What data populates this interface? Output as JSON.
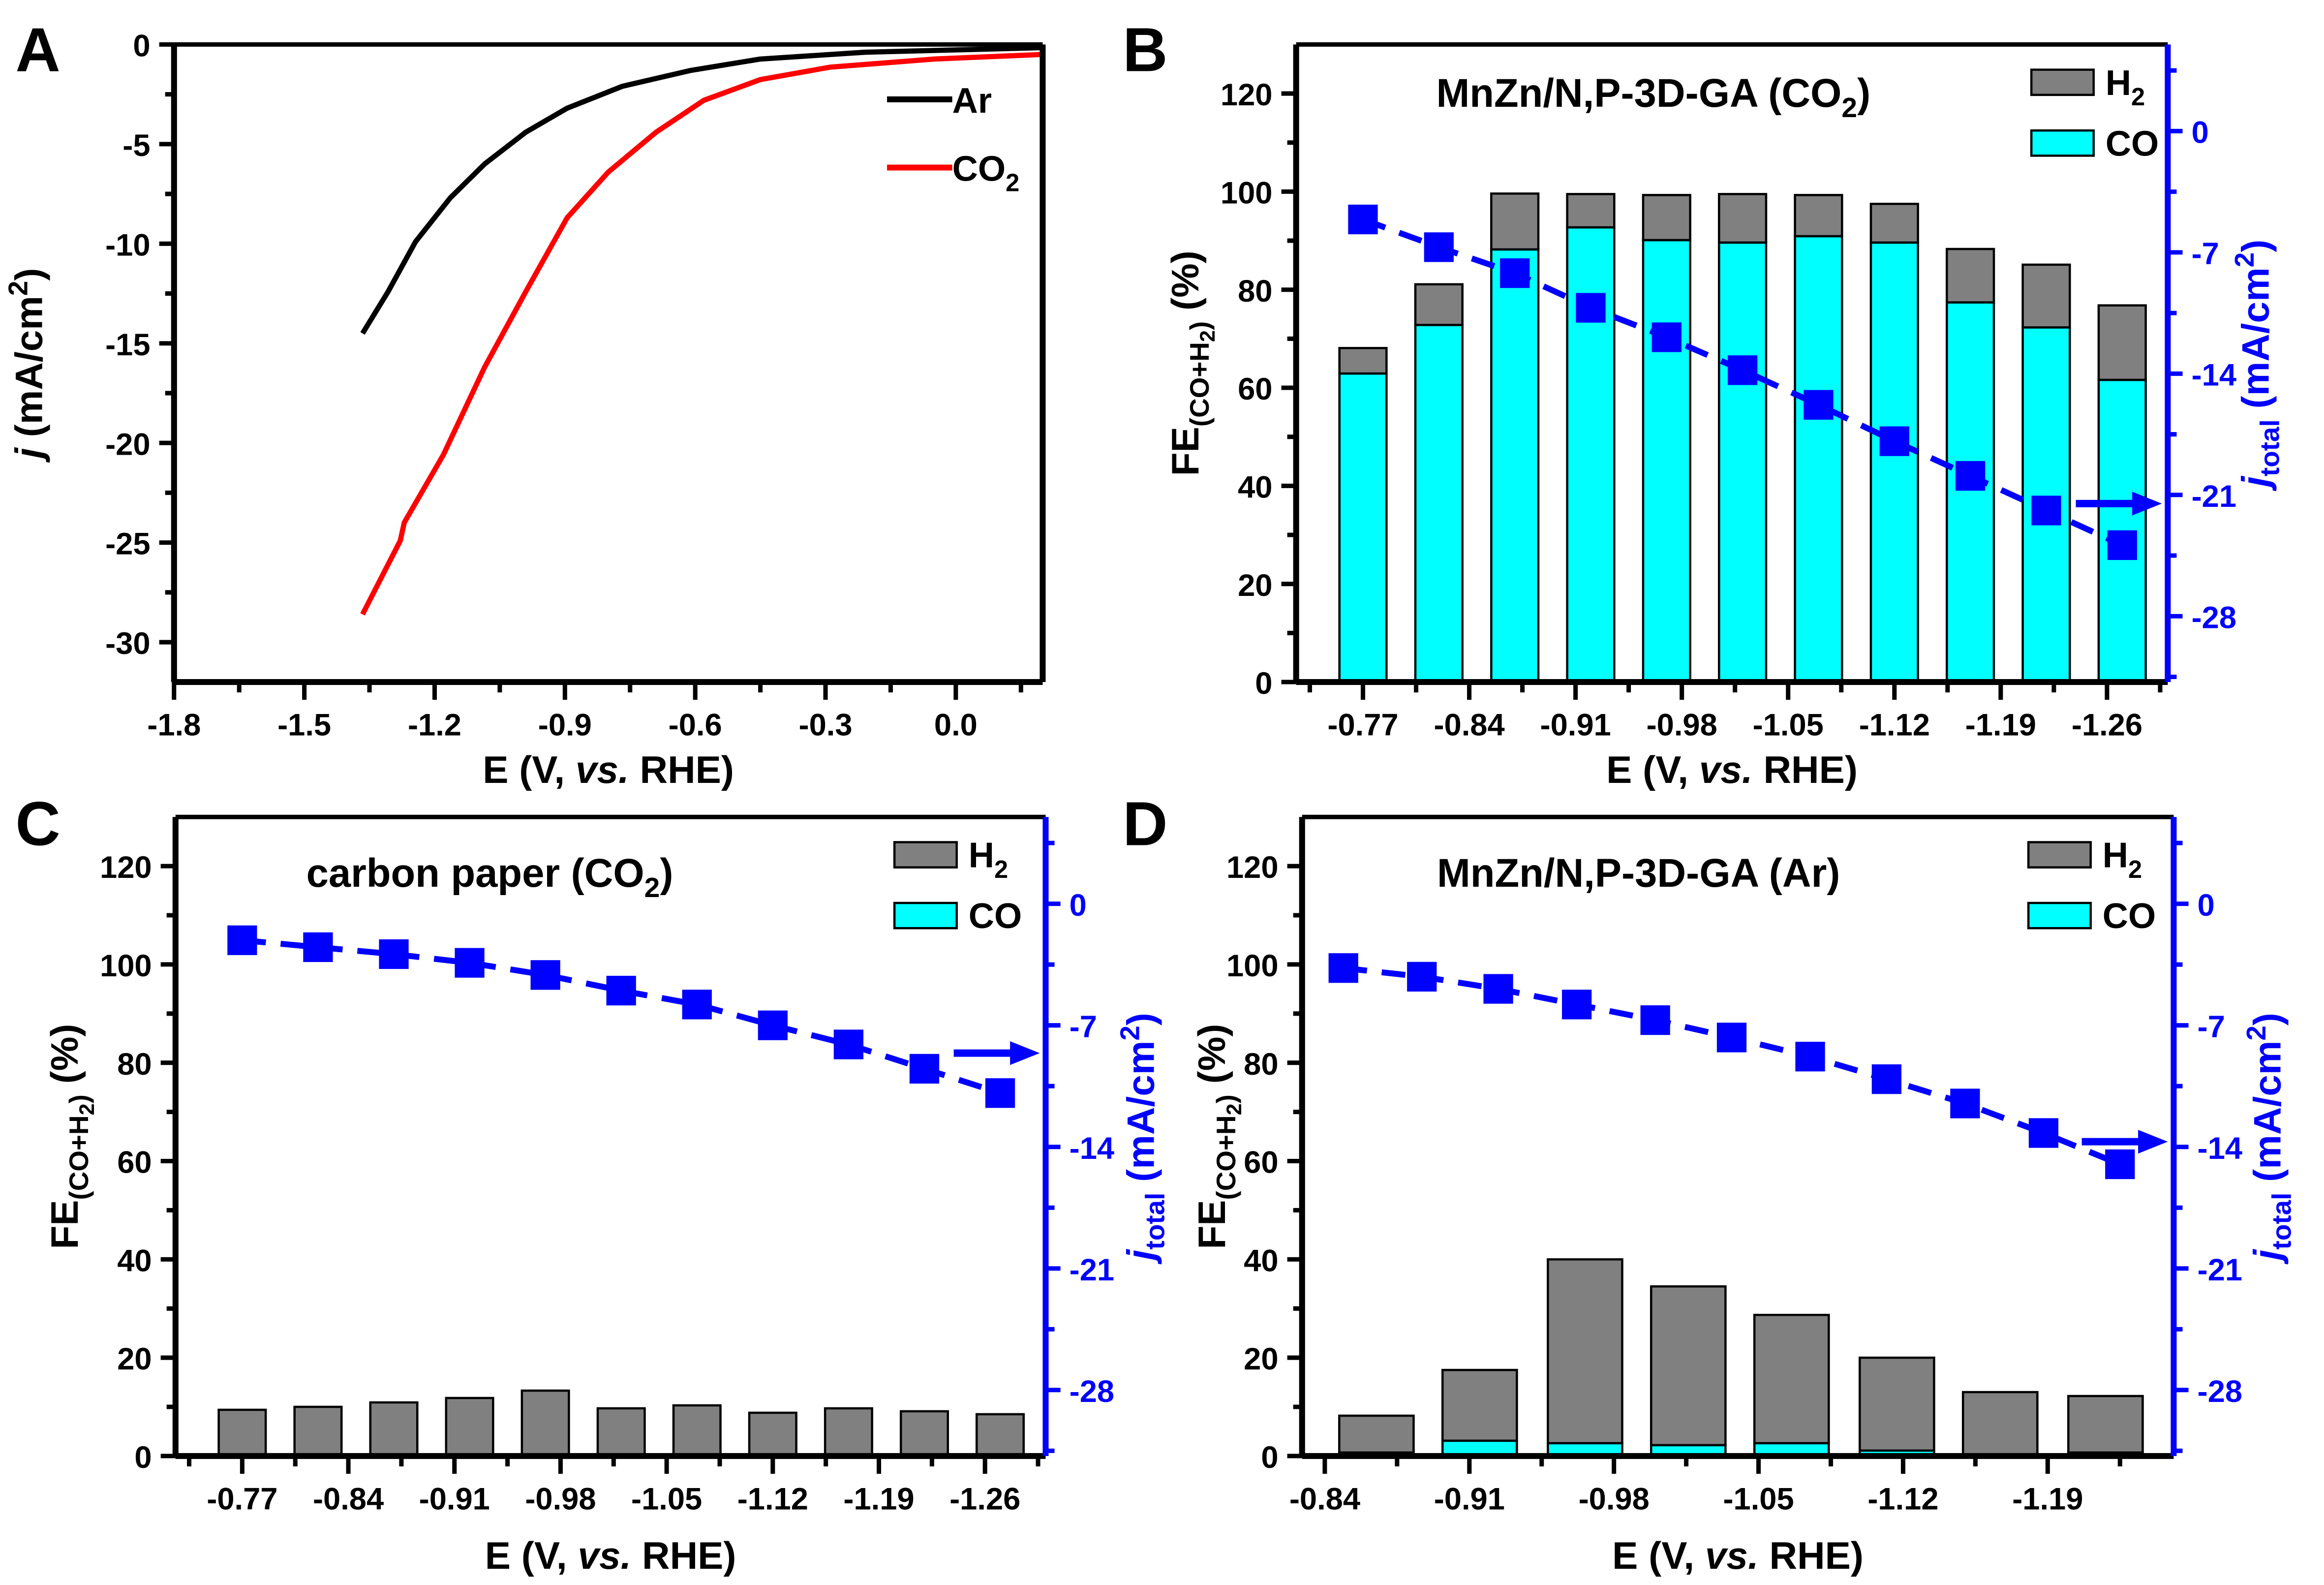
{
  "colors": {
    "h2": "#808080",
    "co": "#00FFFF",
    "jtotal": "#0000FF",
    "ar": "#000000",
    "co2": "#FF0000",
    "axis": "#000000"
  },
  "chart_data": [
    {
      "panel": "A",
      "type": "line",
      "xlabel": [
        {
          "t": "E (V, "
        },
        {
          "t": "vs.",
          "i": true
        },
        {
          "t": " RHE)"
        }
      ],
      "ylabel": [
        {
          "t": "j",
          "i": true
        },
        {
          "t": " (mA/cm"
        },
        {
          "t": "2",
          "s": "sup"
        },
        {
          "t": ")"
        }
      ],
      "xlim": [
        -1.8,
        0.2
      ],
      "ylim": [
        -32,
        0
      ],
      "xticks": [
        "-1.8",
        "-1.5",
        "-1.2",
        "-0.9",
        "-0.6",
        "-0.3",
        "0.0"
      ],
      "yticks": [
        "0",
        "-5",
        "-10",
        "-15",
        "-20",
        "-25",
        "-30"
      ],
      "legend_position": "top-right",
      "series": [
        {
          "name": [
            {
              "t": "Ar"
            }
          ],
          "color": "#000000",
          "x": [
            -1.366,
            -1.307,
            -1.244,
            -1.164,
            -1.085,
            -0.99,
            -0.895,
            -0.768,
            -0.61,
            -0.45,
            -0.21,
            0.2
          ],
          "y": [
            -14.5,
            -12.4,
            -9.9,
            -7.7,
            -6.0,
            -4.4,
            -3.2,
            -2.1,
            -1.3,
            -0.73,
            -0.39,
            -0.16
          ]
        },
        {
          "name": [
            {
              "t": "CO"
            },
            {
              "t": "2",
              "s": "sub"
            }
          ],
          "color": "#FF0000",
          "x": [
            -1.366,
            -1.279,
            -1.27,
            -1.18,
            -1.085,
            -0.99,
            -0.895,
            -0.8,
            -0.69,
            -0.58,
            -0.45,
            -0.29,
            -0.05,
            0.2
          ],
          "y": [
            -28.6,
            -24.9,
            -24.0,
            -20.6,
            -16.2,
            -12.4,
            -8.7,
            -6.4,
            -4.4,
            -2.8,
            -1.76,
            -1.14,
            -0.73,
            -0.5
          ]
        }
      ]
    },
    {
      "panel": "B",
      "type": "bar",
      "stacked": true,
      "annotation": [
        {
          "t": "MnZn/N,P-3D-GA (CO"
        },
        {
          "t": "2",
          "s": "sub"
        },
        {
          "t": ")"
        }
      ],
      "xlabel": [
        {
          "t": "E (V, "
        },
        {
          "t": "vs.",
          "i": true
        },
        {
          "t": " RHE)"
        }
      ],
      "ylabel": [
        {
          "t": "FE"
        },
        {
          "t": "(CO+H",
          "s": "sub"
        },
        {
          "t": "2",
          "s": "sub2"
        },
        {
          "t": ")",
          "s": "sub"
        },
        {
          "t": " (%)"
        }
      ],
      "y2label": [
        {
          "t": "j",
          "i": true
        },
        {
          "t": "total",
          "s": "sub"
        },
        {
          "t": " (mA/cm"
        },
        {
          "t": "2",
          "s": "sup"
        },
        {
          "t": ")"
        }
      ],
      "xlim": [
        -0.726,
        -1.3
      ],
      "ylim": [
        0,
        130
      ],
      "y2lim": [
        -31.8,
        5
      ],
      "xticks": [
        "-0.77",
        "-0.84",
        "-0.91",
        "-0.98",
        "-1.05",
        "-1.12",
        "-1.19",
        "-1.26"
      ],
      "yticks": [
        "0",
        "20",
        "40",
        "60",
        "80",
        "100",
        "120"
      ],
      "y2ticks": [
        "0",
        "-7",
        "-14",
        "-21",
        "-28"
      ],
      "legend_position": "top-right",
      "legend": [
        {
          "key": "h2",
          "label": [
            {
              "t": "H"
            },
            {
              "t": "2",
              "s": "sub"
            }
          ]
        },
        {
          "key": "co",
          "label": [
            {
              "t": "CO"
            }
          ]
        }
      ],
      "x": [
        -0.77,
        -0.82,
        -0.87,
        -0.92,
        -0.97,
        -1.02,
        -1.07,
        -1.12,
        -1.17,
        -1.22,
        -1.27
      ],
      "fe_co": [
        62.9,
        72.8,
        88.2,
        92.7,
        90.1,
        89.6,
        90.9,
        89.6,
        77.4,
        72.3,
        61.6
      ],
      "fe_total": [
        68.1,
        81.1,
        99.6,
        99.5,
        99.3,
        99.5,
        99.3,
        97.5,
        88.3,
        85.1,
        76.8
      ],
      "j_x": [
        -0.77,
        -0.82,
        -0.87,
        -0.92,
        -0.97,
        -1.02,
        -1.07,
        -1.12,
        -1.17,
        -1.22,
        -1.27
      ],
      "j_total": [
        -5.1,
        -6.7,
        -8.2,
        -10.2,
        -11.9,
        -13.8,
        -15.8,
        -17.9,
        -19.9,
        -21.9,
        -23.9
      ],
      "arrow_y2": -21.5
    },
    {
      "panel": "C",
      "type": "bar",
      "stacked": true,
      "annotation": [
        {
          "t": "carbon paper (CO"
        },
        {
          "t": "2",
          "s": "sub"
        },
        {
          "t": ")"
        }
      ],
      "xlabel": [
        {
          "t": "E (V, "
        },
        {
          "t": "vs.",
          "i": true
        },
        {
          "t": " RHE)"
        }
      ],
      "ylabel": [
        {
          "t": "FE"
        },
        {
          "t": "(CO+H",
          "s": "sub"
        },
        {
          "t": "2",
          "s": "sub2"
        },
        {
          "t": ")",
          "s": "sub"
        },
        {
          "t": " (%)"
        }
      ],
      "y2label": [
        {
          "t": "j",
          "i": true
        },
        {
          "t": "total",
          "s": "sub"
        },
        {
          "t": " (mA/cm"
        },
        {
          "t": "2",
          "s": "sup"
        },
        {
          "t": ")"
        }
      ],
      "xlim": [
        -0.726,
        -1.3
      ],
      "ylim": [
        0,
        130
      ],
      "y2lim": [
        -31.8,
        5
      ],
      "xticks": [
        "-0.77",
        "-0.84",
        "-0.91",
        "-0.98",
        "-1.05",
        "-1.12",
        "-1.19",
        "-1.26"
      ],
      "yticks": [
        "0",
        "20",
        "40",
        "60",
        "80",
        "100",
        "120"
      ],
      "y2ticks": [
        "0",
        "-7",
        "-14",
        "-21",
        "-28"
      ],
      "legend_position": "top-right",
      "legend": [
        {
          "key": "h2",
          "label": [
            {
              "t": "H"
            },
            {
              "t": "2",
              "s": "sub"
            }
          ]
        },
        {
          "key": "co",
          "label": [
            {
              "t": "CO"
            }
          ]
        }
      ],
      "x": [
        -0.77,
        -0.82,
        -0.87,
        -0.92,
        -0.97,
        -1.02,
        -1.07,
        -1.12,
        -1.17,
        -1.22,
        -1.27
      ],
      "fe_co": [
        0,
        0,
        0,
        0,
        0,
        0,
        0,
        0,
        0,
        0,
        0
      ],
      "fe_total": [
        9.4,
        10.0,
        10.9,
        11.8,
        13.3,
        9.7,
        10.3,
        8.8,
        9.7,
        9.1,
        8.5
      ],
      "j_x": [
        -0.77,
        -0.82,
        -0.87,
        -0.92,
        -0.97,
        -1.02,
        -1.07,
        -1.12,
        -1.17,
        -1.22,
        -1.27
      ],
      "j_total": [
        -2.1,
        -2.5,
        -2.9,
        -3.4,
        -4.1,
        -5.0,
        -5.8,
        -7.0,
        -8.1,
        -9.5,
        -10.9
      ],
      "arrow_y2": -8.6
    },
    {
      "panel": "D",
      "type": "bar",
      "stacked": true,
      "annotation": [
        {
          "t": "MnZn/N,P-3D-GA (Ar)"
        }
      ],
      "xlabel": [
        {
          "t": "E (V, "
        },
        {
          "t": "vs.",
          "i": true
        },
        {
          "t": " RHE)"
        }
      ],
      "ylabel": [
        {
          "t": "FE"
        },
        {
          "t": "(CO+H",
          "s": "sub"
        },
        {
          "t": "2",
          "s": "sub2"
        },
        {
          "t": ")",
          "s": "sub"
        },
        {
          "t": " (%)"
        }
      ],
      "y2label": [
        {
          "t": "j",
          "i": true
        },
        {
          "t": "total",
          "s": "sub"
        },
        {
          "t": " (mA/cm"
        },
        {
          "t": "2",
          "s": "sup"
        },
        {
          "t": ")"
        }
      ],
      "xlim": [
        -0.829,
        -1.251
      ],
      "ylim": [
        0,
        130
      ],
      "y2lim": [
        -31.8,
        5
      ],
      "xticks": [
        "-0.84",
        "-0.91",
        "-0.98",
        "-1.05",
        "-1.12",
        "-1.19"
      ],
      "yticks": [
        "0",
        "20",
        "40",
        "60",
        "80",
        "100",
        "120"
      ],
      "y2ticks": [
        "0",
        "-7",
        "-14",
        "-21",
        "-28"
      ],
      "legend_position": "top-right",
      "legend": [
        {
          "key": "h2",
          "label": [
            {
              "t": "H"
            },
            {
              "t": "2",
              "s": "sub"
            }
          ]
        },
        {
          "key": "co",
          "label": [
            {
              "t": "CO"
            }
          ]
        }
      ],
      "x": [
        -0.865,
        -0.915,
        -0.966,
        -1.016,
        -1.066,
        -1.117,
        -1.167,
        -1.218
      ],
      "fe_co": [
        0.7,
        3.1,
        2.6,
        2.2,
        2.6,
        1.1,
        0.2,
        0.7
      ],
      "fe_total": [
        8.2,
        17.5,
        40.0,
        34.5,
        28.7,
        20.0,
        13.0,
        12.2
      ],
      "j_x": [
        -0.849,
        -0.887,
        -0.924,
        -0.962,
        -1.0,
        -1.037,
        -1.075,
        -1.112,
        -1.15,
        -1.188,
        -1.225
      ],
      "j_total": [
        -3.7,
        -4.2,
        -4.9,
        -5.8,
        -6.7,
        -7.7,
        -8.8,
        -10.1,
        -11.5,
        -13.2,
        -15.0
      ],
      "arrow_y2": -13.7
    }
  ]
}
